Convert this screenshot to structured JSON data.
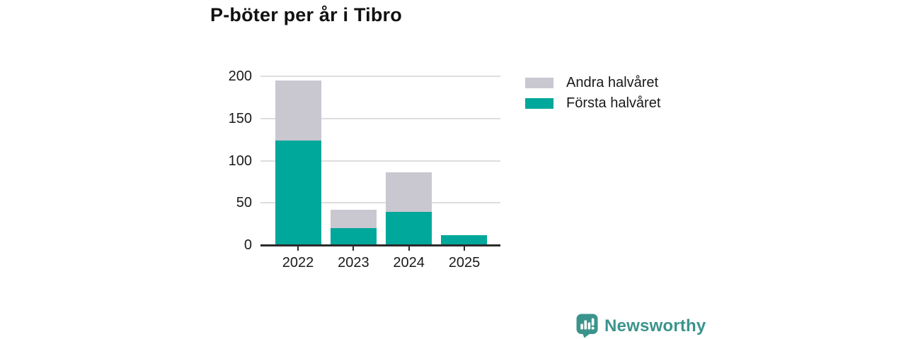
{
  "title": "P-böter per år i Tibro",
  "colors": {
    "first_half": "#00A79B",
    "second_half": "#C9C7CF",
    "gridline": "#DEDEDE",
    "axis": "#2B2B2B",
    "text": "#1A1A1A",
    "brand": "#3A948C"
  },
  "chart_data": {
    "type": "bar",
    "stacked": true,
    "title": "P-böter per år i Tibro",
    "categories": [
      "2022",
      "2023",
      "2024",
      "2025"
    ],
    "series": [
      {
        "name": "Första halvåret",
        "color": "#00A79B",
        "values": [
          124,
          20,
          39,
          12
        ]
      },
      {
        "name": "Andra halvåret",
        "color": "#C9C7CF",
        "values": [
          71,
          22,
          47,
          0
        ]
      }
    ],
    "totals": [
      195,
      42,
      86,
      12
    ],
    "xlabel": "",
    "ylabel": "",
    "ylim": [
      0,
      200
    ],
    "yticks": [
      0,
      50,
      100,
      150,
      200
    ],
    "grid": true,
    "legend_position": "right-top"
  },
  "legend": {
    "items": [
      {
        "label": "Andra halvåret",
        "color": "#C9C7CF"
      },
      {
        "label": "Första halvåret",
        "color": "#00A79B"
      }
    ]
  },
  "footer": {
    "brand": "Newsworthy"
  }
}
